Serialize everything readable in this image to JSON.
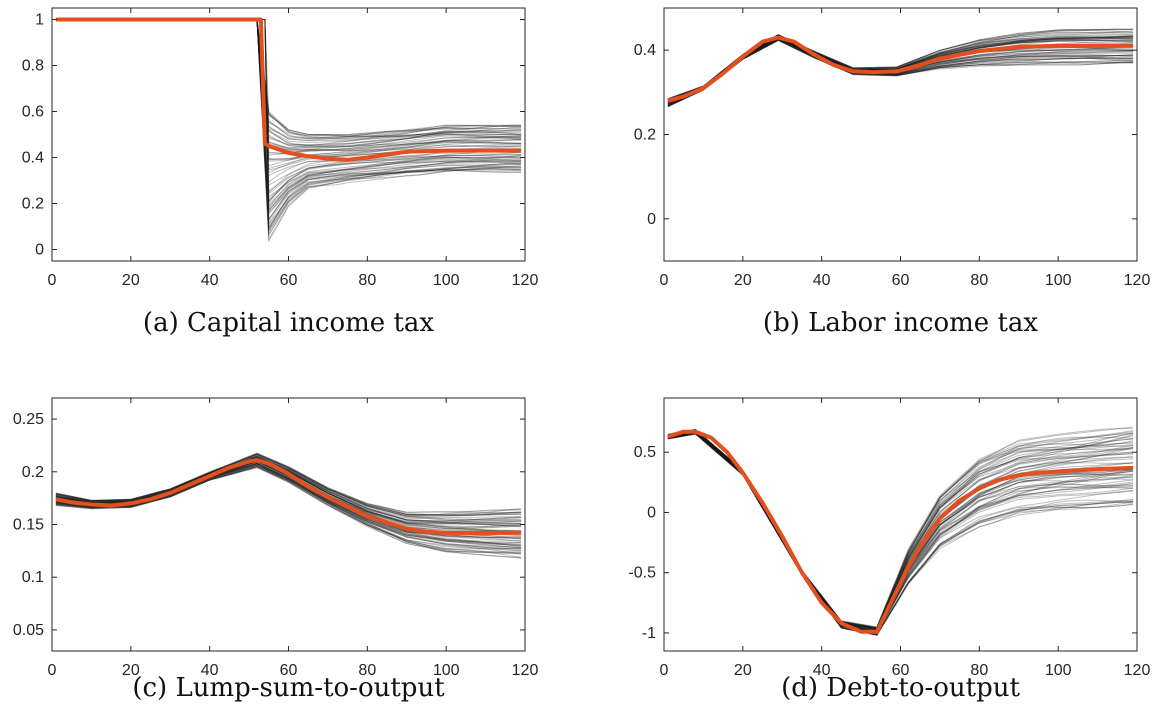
{
  "figure": {
    "panel_labels": [
      "(a)",
      "(b)",
      "(c)",
      "(d)"
    ]
  },
  "colors": {
    "mean_line": "#e3501e",
    "simulation_lines": "#1a1a1a",
    "axis": "#262626"
  },
  "chart_data": [
    {
      "type": "line",
      "caption": "Capital income tax",
      "panel": "(a)",
      "xlim": [
        0,
        120
      ],
      "ylim": [
        -0.05,
        1.05
      ],
      "xticks": [
        0,
        20,
        40,
        60,
        80,
        100,
        120
      ],
      "yticks": [
        0,
        0.2,
        0.4,
        0.6,
        0.8,
        1
      ],
      "ytick_labels": [
        "0",
        "0.2",
        "0.4",
        "0.6",
        "0.8",
        "1"
      ],
      "series": [
        {
          "role": "mean",
          "x": [
            1,
            10,
            20,
            30,
            40,
            50,
            52,
            53,
            54,
            55,
            60,
            65,
            70,
            75,
            80,
            90,
            100,
            110,
            119
          ],
          "y": [
            1,
            1,
            1,
            1,
            1,
            1,
            1,
            1,
            0.46,
            0.45,
            0.42,
            0.405,
            0.395,
            0.39,
            0.4,
            0.425,
            0.43,
            0.43,
            0.43
          ]
        },
        {
          "role": "simulation_band_upper",
          "x": [
            1,
            50,
            51,
            52,
            55,
            60,
            65,
            75,
            90,
            100,
            119
          ],
          "y": [
            1,
            1,
            1,
            1,
            0.6,
            0.52,
            0.5,
            0.5,
            0.52,
            0.54,
            0.54
          ]
        },
        {
          "role": "simulation_band_lower",
          "x": [
            1,
            50,
            51,
            52,
            55,
            60,
            65,
            75,
            90,
            100,
            119
          ],
          "y": [
            1,
            1,
            1,
            1,
            0.02,
            0.18,
            0.26,
            0.29,
            0.32,
            0.33,
            0.33
          ]
        }
      ]
    },
    {
      "type": "line",
      "caption": "Labor income tax",
      "panel": "(b)",
      "xlim": [
        0,
        120
      ],
      "ylim": [
        -0.1,
        0.5
      ],
      "xticks": [
        0,
        20,
        40,
        60,
        80,
        100,
        120
      ],
      "yticks": [
        0,
        0.2,
        0.4
      ],
      "ytick_labels": [
        "0",
        "0.2",
        "0.4"
      ],
      "series": [
        {
          "role": "mean",
          "x": [
            1,
            5,
            10,
            15,
            20,
            25,
            29,
            33,
            38,
            43,
            48,
            53,
            59,
            65,
            70,
            80,
            90,
            100,
            110,
            119
          ],
          "y": [
            0.28,
            0.29,
            0.31,
            0.345,
            0.385,
            0.42,
            0.43,
            0.42,
            0.39,
            0.365,
            0.35,
            0.348,
            0.35,
            0.365,
            0.38,
            0.398,
            0.408,
            0.41,
            0.41,
            0.41
          ]
        },
        {
          "role": "simulation_band_upper",
          "x": [
            1,
            10,
            20,
            29,
            38,
            48,
            59,
            70,
            80,
            90,
            100,
            119
          ],
          "y": [
            0.285,
            0.315,
            0.39,
            0.437,
            0.398,
            0.358,
            0.36,
            0.4,
            0.425,
            0.44,
            0.448,
            0.45
          ]
        },
        {
          "role": "simulation_band_lower",
          "x": [
            1,
            10,
            20,
            29,
            38,
            48,
            59,
            70,
            80,
            90,
            100,
            119
          ],
          "y": [
            0.265,
            0.305,
            0.378,
            0.423,
            0.382,
            0.342,
            0.338,
            0.355,
            0.362,
            0.365,
            0.365,
            0.365
          ]
        }
      ]
    },
    {
      "type": "line",
      "caption": "Lump-sum-to-output",
      "panel": "(c)",
      "xlim": [
        0,
        120
      ],
      "ylim": [
        0.03,
        0.27
      ],
      "xticks": [
        0,
        20,
        40,
        60,
        80,
        100,
        120
      ],
      "yticks": [
        0.05,
        0.1,
        0.15,
        0.2,
        0.25
      ],
      "ytick_labels": [
        "0.05",
        "0.1",
        "0.15",
        "0.2",
        "0.25"
      ],
      "series": [
        {
          "role": "mean",
          "x": [
            1,
            5,
            10,
            15,
            20,
            25,
            30,
            35,
            40,
            45,
            50,
            52,
            55,
            60,
            65,
            70,
            75,
            80,
            90,
            95,
            100,
            110,
            119
          ],
          "y": [
            0.174,
            0.171,
            0.169,
            0.168,
            0.17,
            0.174,
            0.18,
            0.188,
            0.196,
            0.204,
            0.21,
            0.211,
            0.208,
            0.198,
            0.186,
            0.176,
            0.167,
            0.158,
            0.146,
            0.143,
            0.142,
            0.142,
            0.142
          ]
        },
        {
          "role": "simulation_band_upper",
          "x": [
            1,
            10,
            20,
            30,
            40,
            52,
            60,
            70,
            80,
            90,
            100,
            119
          ],
          "y": [
            0.18,
            0.173,
            0.174,
            0.184,
            0.2,
            0.218,
            0.205,
            0.185,
            0.17,
            0.162,
            0.163,
            0.165
          ]
        },
        {
          "role": "simulation_band_lower",
          "x": [
            1,
            10,
            20,
            30,
            40,
            52,
            60,
            70,
            80,
            90,
            100,
            119
          ],
          "y": [
            0.168,
            0.165,
            0.166,
            0.176,
            0.192,
            0.204,
            0.19,
            0.168,
            0.148,
            0.132,
            0.124,
            0.118
          ]
        }
      ]
    },
    {
      "type": "line",
      "caption": "Debt-to-output",
      "panel": "(d)",
      "xlim": [
        0,
        120
      ],
      "ylim": [
        -1.15,
        0.95
      ],
      "xticks": [
        0,
        20,
        40,
        60,
        80,
        100,
        120
      ],
      "yticks": [
        -1,
        -0.5,
        0,
        0.5
      ],
      "ytick_labels": [
        "-1",
        "-0.5",
        "0",
        "0.5"
      ],
      "series": [
        {
          "role": "mean",
          "x": [
            1,
            5,
            8,
            12,
            16,
            20,
            25,
            30,
            35,
            40,
            45,
            50,
            54,
            58,
            62,
            66,
            70,
            75,
            80,
            85,
            90,
            95,
            100,
            110,
            119
          ],
          "y": [
            0.63,
            0.67,
            0.67,
            0.62,
            0.5,
            0.33,
            0.08,
            -0.2,
            -0.5,
            -0.75,
            -0.92,
            -0.99,
            -0.99,
            -0.72,
            -0.45,
            -0.23,
            -0.05,
            0.1,
            0.2,
            0.27,
            0.31,
            0.33,
            0.34,
            0.36,
            0.37
          ]
        },
        {
          "role": "simulation_band_upper",
          "x": [
            1,
            8,
            20,
            35,
            45,
            54,
            62,
            70,
            80,
            90,
            100,
            119
          ],
          "y": [
            0.65,
            0.69,
            0.35,
            -0.48,
            -0.9,
            -0.95,
            -0.3,
            0.15,
            0.45,
            0.6,
            0.65,
            0.72
          ]
        },
        {
          "role": "simulation_band_lower",
          "x": [
            1,
            8,
            20,
            35,
            45,
            54,
            62,
            70,
            80,
            90,
            100,
            119
          ],
          "y": [
            0.61,
            0.65,
            0.31,
            -0.52,
            -0.96,
            -1.02,
            -0.6,
            -0.3,
            -0.12,
            -0.02,
            0.02,
            0.05
          ]
        }
      ]
    }
  ]
}
